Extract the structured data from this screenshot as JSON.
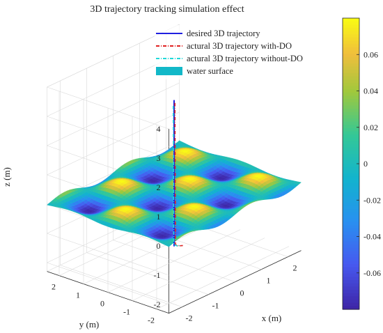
{
  "chart_data": {
    "type": "surface",
    "title": "3D trajectory tracking simulation effect",
    "xlabel": "x (m)",
    "ylabel": "y (m)",
    "zlabel": "z (m)",
    "xlim": [
      -2.5,
      2.5
    ],
    "ylim": [
      -2.5,
      2.5
    ],
    "zlim": [
      -2.3,
      4
    ],
    "x_ticks": [
      "-2",
      "-1",
      "0",
      "1",
      "2"
    ],
    "y_ticks": [
      "2",
      "1",
      "0",
      "-1",
      "-2"
    ],
    "z_ticks": [
      "4",
      "3",
      "2",
      "1",
      "0",
      "-1",
      "-2"
    ],
    "grid": true,
    "legend_position": "top-right",
    "series": [
      {
        "name": "desired 3D trajectory",
        "color": "#1f1fe0",
        "style": "solid",
        "x": [
          0,
          0
        ],
        "y": [
          0,
          0
        ],
        "z": [
          3.2,
          -1.8
        ]
      },
      {
        "name": "actural 3D trajectory with-DO",
        "color": "#e02020",
        "style": "dash-dot",
        "x": [
          0,
          0.02,
          0.15,
          0.3
        ],
        "y": [
          0,
          0,
          0,
          0
        ],
        "z": [
          3.1,
          -1.75,
          -1.85,
          -1.9
        ]
      },
      {
        "name": "actural 3D trajectory without-DO",
        "color": "#20d8d8",
        "style": "dash-dot",
        "x": [
          0,
          0.02,
          0.15,
          0.3
        ],
        "y": [
          0,
          0,
          0,
          0
        ],
        "z": [
          3.0,
          -1.75,
          -1.85,
          -1.9
        ]
      },
      {
        "name": "water surface",
        "color": "#12b8c8",
        "style": "patch"
      }
    ],
    "surface": {
      "description": "wavy surface z = A*sin(kx)*cos(ky)",
      "amplitude": 0.08,
      "z_level": 0
    },
    "colorbar": {
      "ticks": [
        "0.06",
        "0.04",
        "0.02",
        "0",
        "-0.02",
        "-0.04",
        "-0.06"
      ],
      "range": [
        -0.08,
        0.08
      ],
      "colormap": "parula"
    }
  }
}
